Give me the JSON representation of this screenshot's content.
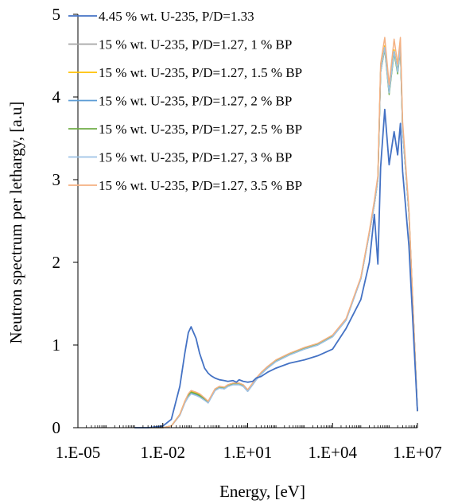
{
  "chart_data": {
    "type": "line",
    "title": "",
    "xlabel": "Energy, [eV]",
    "ylabel": "Neutron spectrum per lethargy, [a.u]",
    "xscale": "log",
    "xlim": [
      1e-05,
      10000000
    ],
    "ylim": [
      0,
      5
    ],
    "x_ticks": [
      1e-05,
      0.01,
      10,
      10000,
      10000000
    ],
    "x_tick_labels": [
      "1.E-05",
      "1.E-02",
      "1.E+01",
      "1.E+04",
      "1.E+07"
    ],
    "y_ticks": [
      0,
      1,
      2,
      3,
      4,
      5
    ],
    "y_tick_labels": [
      "0",
      "1",
      "2",
      "3",
      "4",
      "5"
    ],
    "grid": false,
    "legend_position": "top-left",
    "x": [
      0.001,
      0.003,
      0.01,
      0.02,
      0.04,
      0.06,
      0.08,
      0.1,
      0.15,
      0.2,
      0.3,
      0.4,
      0.5,
      0.7,
      1,
      1.5,
      2,
      3,
      4,
      5,
      7,
      10,
      15,
      20,
      30,
      50,
      100,
      300,
      1000,
      3000,
      10000,
      30000,
      100000,
      200000,
      300000,
      400000,
      500000,
      700000,
      1000000,
      1500000,
      2000000,
      2500000,
      3000000,
      5000000,
      10000000
    ],
    "series": [
      {
        "name": "4.45 % wt. U-235, P/D=1.33",
        "color": "#4472c4",
        "values": [
          0,
          0,
          0.02,
          0.1,
          0.5,
          0.9,
          1.15,
          1.22,
          1.08,
          0.9,
          0.72,
          0.66,
          0.63,
          0.6,
          0.58,
          0.57,
          0.56,
          0.57,
          0.55,
          0.58,
          0.56,
          0.55,
          0.56,
          0.6,
          0.62,
          0.67,
          0.72,
          0.78,
          0.82,
          0.87,
          0.95,
          1.2,
          1.55,
          2.0,
          2.58,
          1.98,
          3.15,
          3.85,
          3.18,
          3.58,
          3.3,
          3.68,
          3.1,
          2.2,
          0.2
        ]
      },
      {
        "name": "15 % wt. U-235, P/D=1.27, 1 % BP",
        "color": "#a5a5a5",
        "values": [
          0,
          0,
          0.0,
          0.02,
          0.15,
          0.3,
          0.38,
          0.42,
          0.4,
          0.38,
          0.34,
          0.3,
          0.36,
          0.45,
          0.48,
          0.47,
          0.5,
          0.52,
          0.52,
          0.52,
          0.5,
          0.44,
          0.52,
          0.58,
          0.65,
          0.72,
          0.8,
          0.88,
          0.95,
          1.0,
          1.1,
          1.3,
          1.8,
          2.35,
          2.7,
          3.0,
          4.3,
          4.6,
          4.05,
          4.55,
          4.3,
          4.6,
          3.6,
          2.6,
          0.2
        ]
      },
      {
        "name": "15 % wt. U-235, P/D=1.27, 1.5 % BP",
        "color": "#ffc000",
        "values": [
          0,
          0,
          0.0,
          0.02,
          0.16,
          0.32,
          0.4,
          0.44,
          0.42,
          0.4,
          0.35,
          0.31,
          0.37,
          0.46,
          0.49,
          0.48,
          0.51,
          0.53,
          0.53,
          0.53,
          0.51,
          0.45,
          0.53,
          0.59,
          0.66,
          0.73,
          0.81,
          0.89,
          0.96,
          1.01,
          1.11,
          1.31,
          1.81,
          2.36,
          2.71,
          3.02,
          4.32,
          4.62,
          4.07,
          4.57,
          4.32,
          4.62,
          3.62,
          2.6,
          0.2
        ]
      },
      {
        "name": "15 % wt. U-235, P/D=1.27, 2 % BP",
        "color": "#5b9bd5",
        "values": [
          0,
          0,
          0.0,
          0.02,
          0.15,
          0.3,
          0.38,
          0.42,
          0.4,
          0.38,
          0.34,
          0.3,
          0.36,
          0.45,
          0.48,
          0.47,
          0.5,
          0.52,
          0.52,
          0.52,
          0.5,
          0.44,
          0.52,
          0.58,
          0.65,
          0.72,
          0.8,
          0.88,
          0.95,
          1.0,
          1.1,
          1.3,
          1.8,
          2.35,
          2.7,
          3.0,
          4.3,
          4.6,
          4.05,
          4.55,
          4.3,
          4.6,
          3.6,
          2.6,
          0.2
        ]
      },
      {
        "name": "15 % wt. U-235, P/D=1.27, 2.5 % BP",
        "color": "#70ad47",
        "values": [
          0,
          0,
          0.0,
          0.02,
          0.16,
          0.31,
          0.39,
          0.43,
          0.41,
          0.39,
          0.35,
          0.31,
          0.37,
          0.46,
          0.49,
          0.48,
          0.51,
          0.53,
          0.53,
          0.53,
          0.51,
          0.45,
          0.53,
          0.59,
          0.66,
          0.73,
          0.81,
          0.89,
          0.96,
          1.01,
          1.11,
          1.31,
          1.81,
          2.36,
          2.7,
          3.0,
          4.3,
          4.58,
          4.03,
          4.53,
          4.28,
          4.58,
          3.6,
          2.6,
          0.2
        ]
      },
      {
        "name": "15 % wt. U-235, P/D=1.27, 3 % BP",
        "color": "#9dc3e6",
        "values": [
          0,
          0,
          0.0,
          0.02,
          0.15,
          0.3,
          0.37,
          0.41,
          0.39,
          0.37,
          0.33,
          0.3,
          0.36,
          0.45,
          0.48,
          0.47,
          0.5,
          0.52,
          0.52,
          0.52,
          0.5,
          0.44,
          0.52,
          0.58,
          0.65,
          0.72,
          0.8,
          0.88,
          0.95,
          1.0,
          1.1,
          1.3,
          1.8,
          2.35,
          2.7,
          3.0,
          4.3,
          4.6,
          4.05,
          4.55,
          4.3,
          4.6,
          3.6,
          2.6,
          0.2
        ]
      },
      {
        "name": "15 % wt. U-235, P/D=1.27, 3.5 % BP",
        "color": "#f4b183",
        "values": [
          0,
          0,
          0.0,
          0.02,
          0.16,
          0.32,
          0.41,
          0.45,
          0.43,
          0.41,
          0.36,
          0.32,
          0.38,
          0.47,
          0.5,
          0.49,
          0.52,
          0.54,
          0.54,
          0.54,
          0.52,
          0.46,
          0.54,
          0.6,
          0.67,
          0.74,
          0.82,
          0.9,
          0.97,
          1.02,
          1.12,
          1.32,
          1.82,
          2.38,
          2.75,
          3.05,
          4.4,
          4.72,
          4.15,
          4.7,
          4.4,
          4.72,
          3.7,
          2.65,
          0.2
        ]
      }
    ]
  }
}
